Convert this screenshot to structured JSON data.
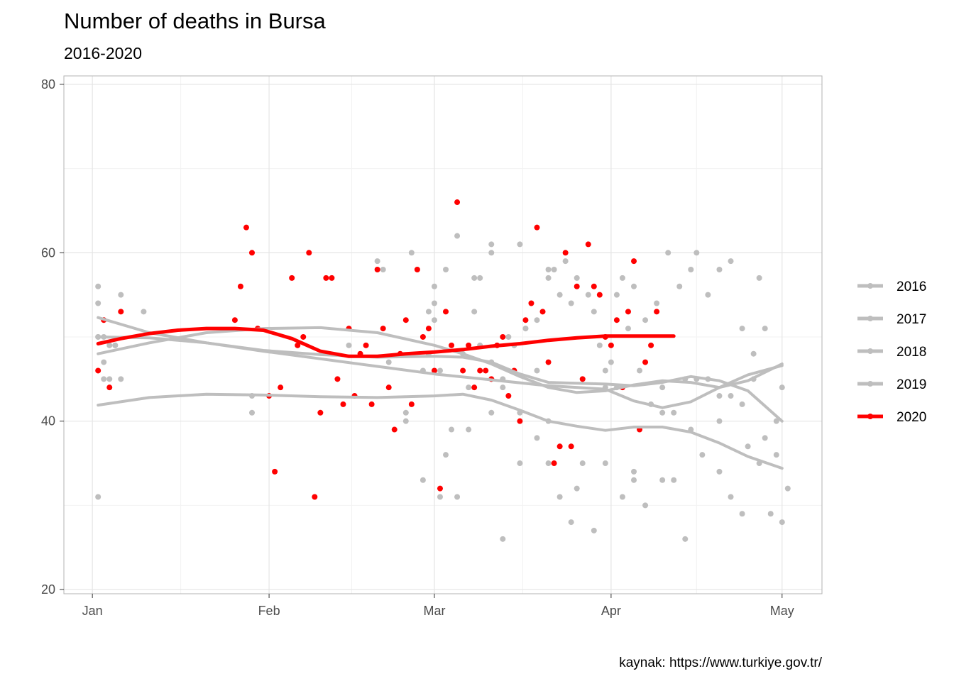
{
  "chart_data": {
    "type": "scatter",
    "title": "Number of deaths in Bursa",
    "subtitle": "2016-2020",
    "caption": "kaynak: https://www.turkiye.gov.tr/",
    "xlabel": "",
    "ylabel": "",
    "x_axis": {
      "unit": "day of year (Jan 1 = 0)",
      "ticks": [
        {
          "label": "Jan",
          "value": 0
        },
        {
          "label": "Feb",
          "value": 31
        },
        {
          "label": "Mar",
          "value": 60
        },
        {
          "label": "Apr",
          "value": 91
        },
        {
          "label": "May",
          "value": 121
        }
      ],
      "range": [
        -5,
        128
      ]
    },
    "y_axis": {
      "ticks": [
        {
          "label": "20",
          "value": 20
        },
        {
          "label": "40",
          "value": 40
        },
        {
          "label": "60",
          "value": 60
        },
        {
          "label": "80",
          "value": 80
        }
      ],
      "range": [
        19.5,
        81
      ]
    },
    "grid": true,
    "legend_position": "right",
    "colors": {
      "highlight": "#ff0000",
      "other": "#bebebe",
      "grid": "#ebebeb",
      "panel_border": "#b3b3b3"
    },
    "series": [
      {
        "name": "2016",
        "color": "#bebebe",
        "smooth": [
          [
            1,
            52.3
          ],
          [
            10,
            50.5
          ],
          [
            20,
            49.3
          ],
          [
            30,
            48.3
          ],
          [
            40,
            47.4
          ],
          [
            50,
            46.5
          ],
          [
            60,
            45.6
          ],
          [
            70,
            44.9
          ],
          [
            80,
            44.2
          ],
          [
            90,
            43.8
          ],
          [
            95,
            42.4
          ],
          [
            100,
            41.6
          ],
          [
            105,
            42.3
          ],
          [
            110,
            44.0
          ],
          [
            115,
            45.5
          ],
          [
            121,
            46.6
          ]
        ],
        "points": [
          [
            1,
            56
          ],
          [
            1,
            50
          ],
          [
            2,
            45
          ],
          [
            3,
            49
          ],
          [
            4,
            49
          ],
          [
            5,
            55
          ],
          [
            9,
            53
          ],
          [
            28,
            43
          ],
          [
            45,
            49
          ],
          [
            52,
            47
          ],
          [
            60,
            56
          ],
          [
            62,
            36
          ],
          [
            68,
            49
          ],
          [
            70,
            45
          ],
          [
            75,
            41
          ],
          [
            80,
            35
          ],
          [
            85,
            32
          ],
          [
            90,
            35
          ],
          [
            95,
            33
          ],
          [
            100,
            41
          ],
          [
            105,
            39
          ],
          [
            110,
            40
          ],
          [
            115,
            37
          ],
          [
            120,
            36
          ]
        ]
      },
      {
        "name": "2017",
        "color": "#bebebe",
        "smooth": [
          [
            1,
            41.9
          ],
          [
            10,
            42.8
          ],
          [
            20,
            43.2
          ],
          [
            30,
            43.1
          ],
          [
            40,
            42.9
          ],
          [
            50,
            42.8
          ],
          [
            60,
            43.0
          ],
          [
            65,
            43.2
          ],
          [
            70,
            42.5
          ],
          [
            75,
            41.3
          ],
          [
            80,
            40.0
          ],
          [
            85,
            39.4
          ],
          [
            90,
            38.9
          ],
          [
            95,
            39.3
          ],
          [
            100,
            39.3
          ],
          [
            105,
            38.7
          ],
          [
            110,
            37.4
          ],
          [
            115,
            35.8
          ],
          [
            121,
            34.4
          ]
        ],
        "points": [
          [
            1,
            31
          ],
          [
            2,
            47
          ],
          [
            5,
            45
          ],
          [
            28,
            41
          ],
          [
            55,
            41
          ],
          [
            58,
            33
          ],
          [
            61,
            31
          ],
          [
            64,
            31
          ],
          [
            66,
            39
          ],
          [
            70,
            41
          ],
          [
            72,
            26
          ],
          [
            75,
            35
          ],
          [
            78,
            38
          ],
          [
            80,
            40
          ],
          [
            82,
            31
          ],
          [
            84,
            28
          ],
          [
            86,
            35
          ],
          [
            88,
            27
          ],
          [
            90,
            44
          ],
          [
            93,
            31
          ],
          [
            95,
            34
          ],
          [
            97,
            30
          ],
          [
            100,
            33
          ],
          [
            102,
            33
          ],
          [
            104,
            26
          ],
          [
            107,
            36
          ],
          [
            110,
            34
          ],
          [
            112,
            31
          ],
          [
            114,
            29
          ],
          [
            117,
            35
          ],
          [
            119,
            29
          ],
          [
            121,
            28
          ],
          [
            122,
            32
          ]
        ]
      },
      {
        "name": "2018",
        "color": "#bebebe",
        "smooth": [
          [
            1,
            50.0
          ],
          [
            10,
            49.9
          ],
          [
            20,
            49.3
          ],
          [
            30,
            48.4
          ],
          [
            40,
            47.9
          ],
          [
            50,
            47.6
          ],
          [
            60,
            47.7
          ],
          [
            65,
            47.6
          ],
          [
            70,
            47.0
          ],
          [
            75,
            45.6
          ],
          [
            80,
            44.6
          ],
          [
            85,
            44.5
          ],
          [
            90,
            44.4
          ],
          [
            95,
            44.2
          ],
          [
            100,
            44.6
          ],
          [
            105,
            45.3
          ],
          [
            110,
            44.8
          ],
          [
            115,
            43.6
          ],
          [
            121,
            40.0
          ]
        ],
        "points": [
          [
            1,
            54
          ],
          [
            2,
            50
          ],
          [
            3,
            45
          ],
          [
            50,
            59
          ],
          [
            51,
            58
          ],
          [
            56,
            60
          ],
          [
            58,
            46
          ],
          [
            59,
            48
          ],
          [
            60,
            52
          ],
          [
            61,
            46
          ],
          [
            63,
            39
          ],
          [
            65,
            48
          ],
          [
            67,
            53
          ],
          [
            70,
            47
          ],
          [
            72,
            45
          ],
          [
            74,
            49
          ],
          [
            76,
            51
          ],
          [
            78,
            46
          ],
          [
            80,
            58
          ],
          [
            82,
            55
          ],
          [
            84,
            54
          ],
          [
            86,
            45
          ],
          [
            88,
            53
          ],
          [
            90,
            46
          ],
          [
            92,
            44
          ],
          [
            94,
            51
          ],
          [
            96,
            46
          ],
          [
            98,
            42
          ],
          [
            100,
            44
          ],
          [
            102,
            41
          ],
          [
            104,
            45
          ],
          [
            106,
            45
          ],
          [
            108,
            45
          ],
          [
            110,
            43
          ],
          [
            112,
            43
          ],
          [
            114,
            42
          ],
          [
            116,
            45
          ],
          [
            118,
            38
          ],
          [
            120,
            40
          ],
          [
            121,
            44
          ]
        ]
      },
      {
        "name": "2019",
        "color": "#bebebe",
        "smooth": [
          [
            1,
            48.0
          ],
          [
            10,
            49.3
          ],
          [
            20,
            50.5
          ],
          [
            30,
            51.0
          ],
          [
            40,
            51.1
          ],
          [
            50,
            50.5
          ],
          [
            60,
            49.0
          ],
          [
            65,
            48.0
          ],
          [
            70,
            46.8
          ],
          [
            75,
            45.3
          ],
          [
            80,
            44.0
          ],
          [
            85,
            43.4
          ],
          [
            90,
            43.6
          ],
          [
            95,
            44.3
          ],
          [
            100,
            44.8
          ],
          [
            105,
            44.6
          ],
          [
            110,
            44.0
          ],
          [
            115,
            44.8
          ],
          [
            121,
            46.8
          ]
        ],
        "points": [
          [
            1,
            50
          ],
          [
            2,
            52
          ],
          [
            4,
            49
          ],
          [
            55,
            40
          ],
          [
            59,
            53
          ],
          [
            60,
            54
          ],
          [
            62,
            58
          ],
          [
            64,
            62
          ],
          [
            66,
            44
          ],
          [
            67,
            57
          ],
          [
            68,
            57
          ],
          [
            70,
            61
          ],
          [
            70,
            60
          ],
          [
            72,
            44
          ],
          [
            73,
            50
          ],
          [
            75,
            61
          ],
          [
            76,
            51
          ],
          [
            78,
            52
          ],
          [
            80,
            57
          ],
          [
            81,
            58
          ],
          [
            83,
            59
          ],
          [
            85,
            57
          ],
          [
            87,
            55
          ],
          [
            89,
            49
          ],
          [
            91,
            47
          ],
          [
            92,
            55
          ],
          [
            93,
            57
          ],
          [
            95,
            56
          ],
          [
            97,
            52
          ],
          [
            99,
            54
          ],
          [
            101,
            60
          ],
          [
            103,
            56
          ],
          [
            105,
            58
          ],
          [
            106,
            60
          ],
          [
            108,
            55
          ],
          [
            110,
            58
          ],
          [
            112,
            59
          ],
          [
            114,
            51
          ],
          [
            116,
            48
          ],
          [
            117,
            57
          ],
          [
            118,
            51
          ]
        ]
      },
      {
        "name": "2020",
        "color": "#ff0000",
        "smooth": [
          [
            1,
            49.2
          ],
          [
            5,
            49.8
          ],
          [
            10,
            50.4
          ],
          [
            15,
            50.8
          ],
          [
            20,
            51.0
          ],
          [
            25,
            51.0
          ],
          [
            30,
            50.8
          ],
          [
            35,
            49.8
          ],
          [
            40,
            48.3
          ],
          [
            45,
            47.7
          ],
          [
            50,
            47.7
          ],
          [
            55,
            48.0
          ],
          [
            60,
            48.2
          ],
          [
            65,
            48.5
          ],
          [
            70,
            48.9
          ],
          [
            75,
            49.2
          ],
          [
            80,
            49.6
          ],
          [
            85,
            49.9
          ],
          [
            90,
            50.1
          ],
          [
            95,
            50.1
          ],
          [
            102,
            50.1
          ]
        ],
        "points": [
          [
            1,
            46
          ],
          [
            2,
            52
          ],
          [
            3,
            44
          ],
          [
            5,
            53
          ],
          [
            25,
            52
          ],
          [
            26,
            56
          ],
          [
            27,
            63
          ],
          [
            28,
            60
          ],
          [
            29,
            51
          ],
          [
            31,
            43
          ],
          [
            32,
            34
          ],
          [
            33,
            44
          ],
          [
            35,
            57
          ],
          [
            36,
            49
          ],
          [
            37,
            50
          ],
          [
            38,
            60
          ],
          [
            39,
            31
          ],
          [
            40,
            41
          ],
          [
            41,
            57
          ],
          [
            42,
            57
          ],
          [
            43,
            45
          ],
          [
            44,
            42
          ],
          [
            45,
            51
          ],
          [
            46,
            43
          ],
          [
            47,
            48
          ],
          [
            48,
            49
          ],
          [
            49,
            42
          ],
          [
            50,
            58
          ],
          [
            51,
            51
          ],
          [
            52,
            44
          ],
          [
            53,
            39
          ],
          [
            54,
            48
          ],
          [
            55,
            52
          ],
          [
            56,
            42
          ],
          [
            57,
            58
          ],
          [
            58,
            50
          ],
          [
            59,
            51
          ],
          [
            60,
            46
          ],
          [
            61,
            32
          ],
          [
            62,
            53
          ],
          [
            63,
            49
          ],
          [
            64,
            66
          ],
          [
            65,
            46
          ],
          [
            66,
            49
          ],
          [
            67,
            44
          ],
          [
            68,
            46
          ],
          [
            69,
            46
          ],
          [
            70,
            45
          ],
          [
            71,
            49
          ],
          [
            72,
            50
          ],
          [
            73,
            43
          ],
          [
            74,
            46
          ],
          [
            75,
            40
          ],
          [
            76,
            52
          ],
          [
            77,
            54
          ],
          [
            78,
            63
          ],
          [
            79,
            53
          ],
          [
            80,
            47
          ],
          [
            81,
            35
          ],
          [
            82,
            37
          ],
          [
            83,
            60
          ],
          [
            84,
            37
          ],
          [
            85,
            56
          ],
          [
            86,
            45
          ],
          [
            87,
            61
          ],
          [
            88,
            56
          ],
          [
            89,
            55
          ],
          [
            90,
            50
          ],
          [
            91,
            49
          ],
          [
            92,
            52
          ],
          [
            93,
            44
          ],
          [
            94,
            53
          ],
          [
            95,
            59
          ],
          [
            96,
            39
          ],
          [
            97,
            47
          ],
          [
            98,
            49
          ],
          [
            99,
            53
          ]
        ]
      }
    ],
    "legend": [
      "2016",
      "2017",
      "2018",
      "2019",
      "2020"
    ]
  }
}
